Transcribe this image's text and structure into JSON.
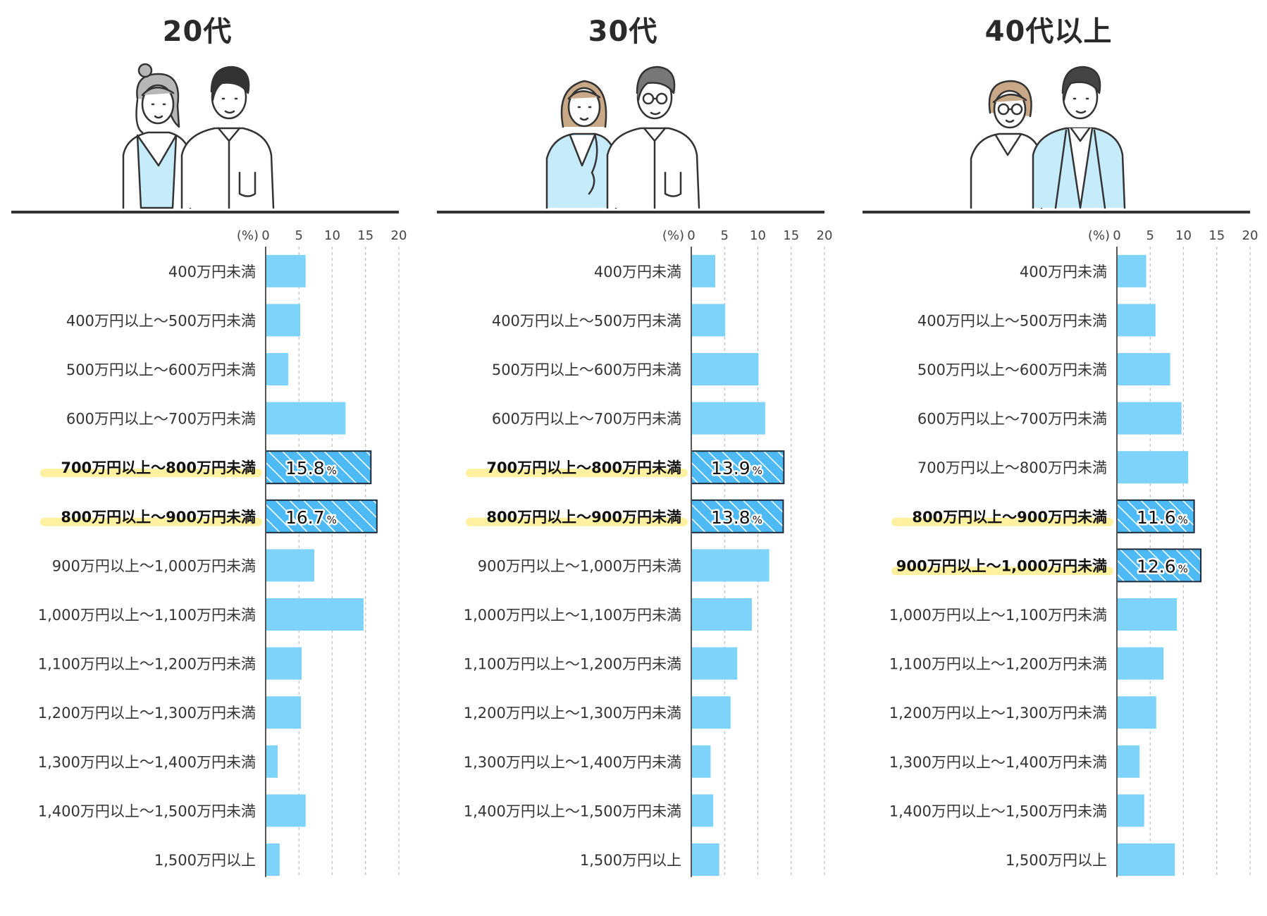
{
  "chart_data": [
    {
      "type": "bar",
      "title": "20代",
      "unit": "(%)",
      "xlim": [
        0,
        20
      ],
      "ticks": [
        0,
        5,
        10,
        15,
        20
      ],
      "categories": [
        "400万円未満",
        "400万円以上～500万円未満",
        "500万円以上～600万円未満",
        "600万円以上～700万円未満",
        "700万円以上～800万円未満",
        "800万円以上～900万円未満",
        "900万円以上～1,000万円未満",
        "1,000万円以上～1,100万円未満",
        "1,100万円以上～1,200万円未満",
        "1,200万円以上～1,300万円未満",
        "1,300万円以上～1,400万円未満",
        "1,400万円以上～1,500万円未満",
        "1,500万円以上"
      ],
      "values": [
        6.0,
        5.2,
        3.4,
        12.0,
        15.8,
        16.7,
        7.3,
        14.7,
        5.4,
        5.3,
        1.8,
        6.0,
        2.1
      ],
      "highlight": [
        {
          "index": 4,
          "label": "15.8",
          "unit": "%"
        },
        {
          "index": 5,
          "label": "16.7",
          "unit": "%"
        }
      ]
    },
    {
      "type": "bar",
      "title": "30代",
      "unit": "(%)",
      "xlim": [
        0,
        20
      ],
      "ticks": [
        0,
        5,
        10,
        15,
        20
      ],
      "categories": [
        "400万円未満",
        "400万円以上～500万円未満",
        "500万円以上～600万円未満",
        "600万円以上～700万円未満",
        "700万円以上～800万円未満",
        "800万円以上～900万円未満",
        "900万円以上～1,000万円未満",
        "1,000万円以上～1,100万円未満",
        "1,100万円以上～1,200万円未満",
        "1,200万円以上～1,300万円未満",
        "1,300万円以上～1,400万円未満",
        "1,400万円以上～1,500万円未満",
        "1,500万円以上"
      ],
      "values": [
        3.6,
        5.1,
        10.1,
        11.1,
        13.9,
        13.8,
        11.7,
        9.1,
        6.9,
        5.9,
        2.9,
        3.3,
        4.2
      ],
      "highlight": [
        {
          "index": 4,
          "label": "13.9",
          "unit": "%"
        },
        {
          "index": 5,
          "label": "13.8",
          "unit": "%"
        }
      ]
    },
    {
      "type": "bar",
      "title": "40代以上",
      "unit": "(%)",
      "xlim": [
        0,
        20
      ],
      "ticks": [
        0,
        5,
        10,
        15,
        20
      ],
      "categories": [
        "400万円未満",
        "400万円以上～500万円未満",
        "500万円以上～600万円未満",
        "600万円以上～700万円未満",
        "700万円以上～800万円未満",
        "800万円以上～900万円未満",
        "900万円以上～1,000万円未満",
        "1,000万円以上～1,100万円未満",
        "1,100万円以上～1,200万円未満",
        "1,200万円以上～1,300万円未満",
        "1,300万円以上～1,400万円未満",
        "1,400万円以上～1,500万円未満",
        "1,500万円以上"
      ],
      "values": [
        4.4,
        5.8,
        8.0,
        9.7,
        10.7,
        11.6,
        12.6,
        9.0,
        7.0,
        5.9,
        3.4,
        4.1,
        8.7
      ],
      "highlight": [
        {
          "index": 5,
          "label": "11.6",
          "unit": "%"
        },
        {
          "index": 6,
          "label": "12.6",
          "unit": "%"
        }
      ]
    }
  ],
  "colors": {
    "bar": "#7ed3fb",
    "bar_highlight": "#4dbaf5",
    "highlight_marker": "#fff1a0",
    "rule": "#333333",
    "illustration_blue": "#c6ebfb",
    "hair_grey": "#b7b7b7",
    "hair_tan": "#c9a888"
  }
}
